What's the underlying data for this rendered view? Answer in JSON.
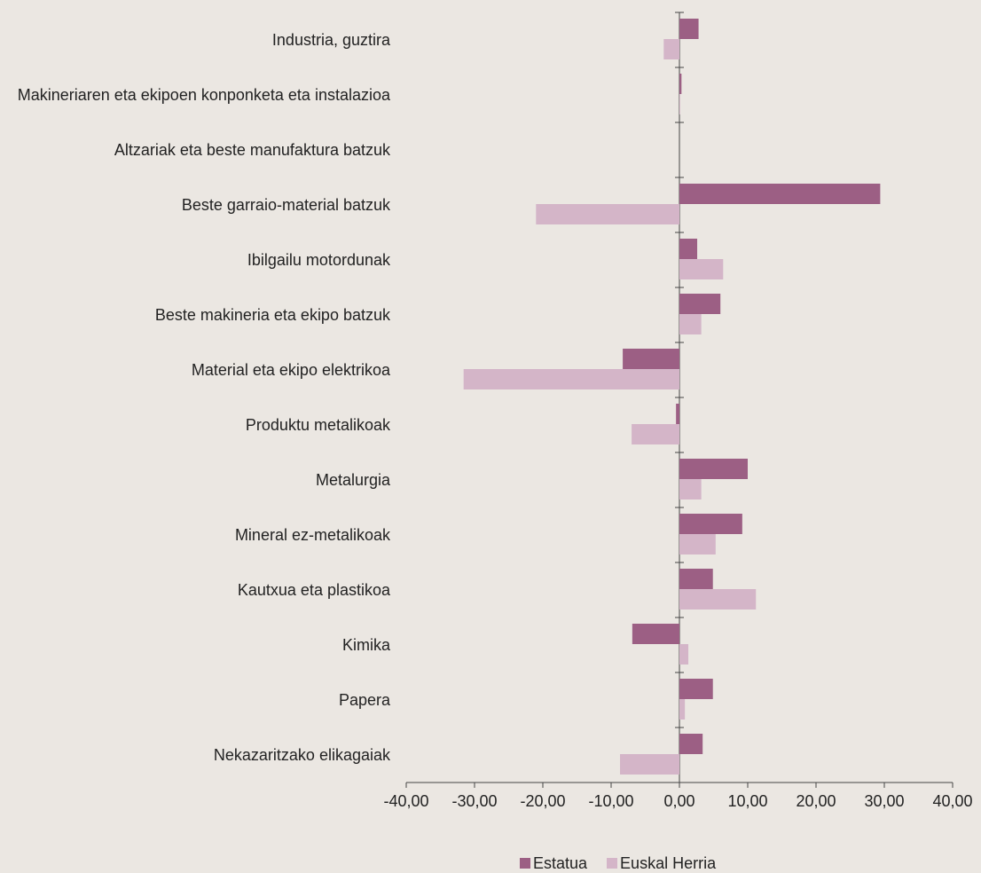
{
  "chart_data": {
    "type": "barh",
    "categories": [
      "Industria, guztira",
      "Makineriaren eta ekipoen konponketa eta instalazioa",
      "Altzariak eta beste manufaktura batzuk",
      "Beste garraio-material batzuk",
      "Ibilgailu motordunak",
      "Beste makineria eta ekipo batzuk",
      "Material eta ekipo elektrikoa",
      "Produktu metalikoak",
      "Metalurgia",
      "Mineral ez-metalikoak",
      "Kautxua eta plastikoa",
      "Kimika",
      "Papera",
      "Nekazaritzako elikagaiak"
    ],
    "series": [
      {
        "name": "Estatua",
        "color": "#9c5f84",
        "values": [
          2.8,
          0.3,
          0,
          29.4,
          2.6,
          6.0,
          -8.3,
          -0.5,
          10.0,
          9.2,
          4.9,
          -6.9,
          4.9,
          3.4
        ]
      },
      {
        "name": "Euskal Herria",
        "color": "#d4b5c8",
        "values": [
          -2.3,
          0.1,
          0,
          -21.0,
          6.4,
          3.2,
          -31.6,
          -7.0,
          3.2,
          5.3,
          11.2,
          1.3,
          0.8,
          -8.7
        ]
      }
    ],
    "xlim": [
      -40,
      40
    ],
    "xticks": [
      {
        "value": -40,
        "label": "-40,00"
      },
      {
        "value": -30,
        "label": "-30,00"
      },
      {
        "value": -20,
        "label": "-20,00"
      },
      {
        "value": -10,
        "label": "-10,00"
      },
      {
        "value": 0,
        "label": "0,00"
      },
      {
        "value": 10,
        "label": "10,00"
      },
      {
        "value": 20,
        "label": "20,00"
      },
      {
        "value": 30,
        "label": "30,00"
      },
      {
        "value": 40,
        "label": "40,00"
      }
    ],
    "legend": "bottom"
  }
}
